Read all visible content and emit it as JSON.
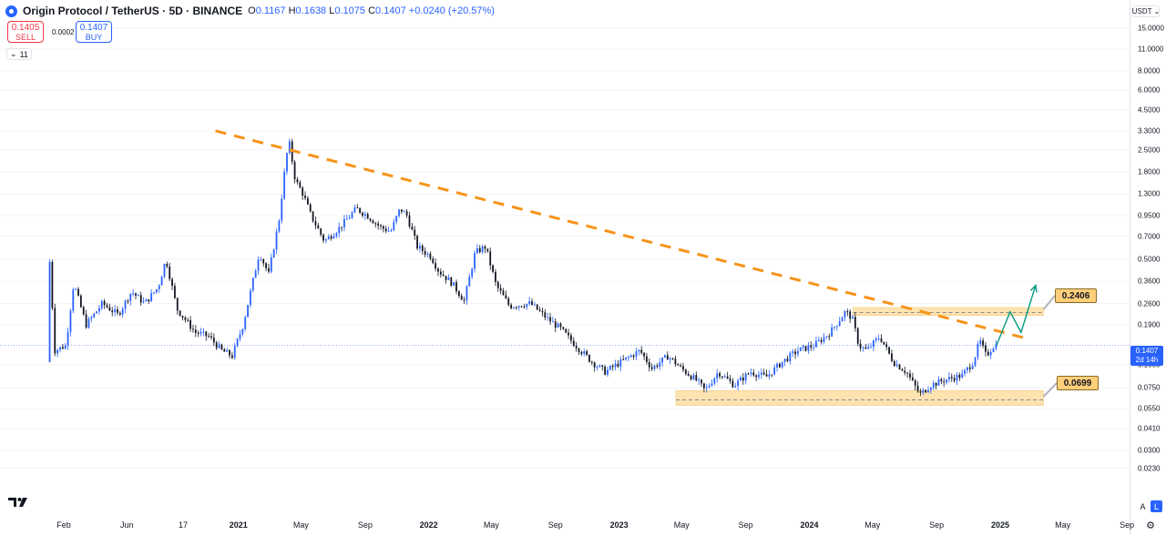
{
  "header": {
    "title": "Origin Protocol / TetherUS · 5D · BINANCE",
    "open_label": "O",
    "open": "0.1167",
    "high_label": "H",
    "high": "0.1638",
    "low_label": "L",
    "low": "0.1075",
    "close_label": "C",
    "close": "0.1407",
    "change": "+0.0240 (+20.57%)"
  },
  "trade": {
    "sell_price": "0.1405",
    "sell_label": "SELL",
    "spread": "0.0002",
    "buy_price": "0.1407",
    "buy_label": "BUY"
  },
  "indicators_count": "11",
  "currency": "USDT",
  "last_price": {
    "value": "0.1407",
    "countdown": "2d 14h"
  },
  "levels": [
    {
      "value": 0.2406,
      "label": "0.2406"
    },
    {
      "value": 0.0699,
      "label": "0.0699"
    }
  ],
  "scale_buttons": {
    "auto": "A",
    "log": "L"
  },
  "colors": {
    "up": "#2962ff",
    "down": "#131722",
    "trendline": "#f7931a",
    "zone": "#fde3b0",
    "projection": "#089981"
  },
  "icons": {
    "logo": "tradingview-logo-icon",
    "settings": "gear-icon",
    "dropdown": "chevron-down-icon"
  },
  "chart_data": {
    "type": "candlestick",
    "scale": "log",
    "ylim": [
      0.0147,
      16.0
    ],
    "y_ticks": [
      "15.0000",
      "11.0000",
      "8.0000",
      "6.0000",
      "4.5000",
      "3.3000",
      "2.5000",
      "1.8000",
      "1.3000",
      "0.9500",
      "0.7000",
      "0.5000",
      "0.3600",
      "0.2600",
      "0.1900",
      "0.1050",
      "0.0750",
      "0.0550",
      "0.0410",
      "0.0300",
      "0.0230"
    ],
    "x_ticks": [
      "Feb",
      "Jun",
      "17",
      "2021",
      "May",
      "Sep",
      "2022",
      "May",
      "Sep",
      "2023",
      "May",
      "Sep",
      "2024",
      "May",
      "Sep",
      "2025",
      "May",
      "Sep"
    ],
    "x_tick_dates": [
      "2020-02-01",
      "2020-06-01",
      "2020-09-17",
      "2021-01-01",
      "2021-05-01",
      "2021-09-01",
      "2022-01-01",
      "2022-05-01",
      "2022-09-01",
      "2023-01-01",
      "2023-05-01",
      "2023-09-01",
      "2024-01-01",
      "2024-05-01",
      "2024-09-01",
      "2025-01-01",
      "2025-05-01",
      "2025-09-01"
    ],
    "price_path": [
      [
        "2020-01-05",
        0.11
      ],
      [
        "2020-01-10",
        0.48
      ],
      [
        "2020-01-20",
        0.13
      ],
      [
        "2020-02-10",
        0.14
      ],
      [
        "2020-02-25",
        0.35
      ],
      [
        "2020-03-20",
        0.19
      ],
      [
        "2020-04-20",
        0.26
      ],
      [
        "2020-05-20",
        0.22
      ],
      [
        "2020-06-15",
        0.31
      ],
      [
        "2020-07-10",
        0.26
      ],
      [
        "2020-08-05",
        0.33
      ],
      [
        "2020-08-20",
        0.5
      ],
      [
        "2020-09-10",
        0.24
      ],
      [
        "2020-10-15",
        0.17
      ],
      [
        "2020-11-10",
        0.16
      ],
      [
        "2020-12-05",
        0.13
      ],
      [
        "2020-12-25",
        0.12
      ],
      [
        "2021-01-15",
        0.19
      ],
      [
        "2021-02-15",
        0.55
      ],
      [
        "2021-03-05",
        0.4
      ],
      [
        "2021-03-25",
        0.9
      ],
      [
        "2021-04-08",
        2.3
      ],
      [
        "2021-04-14",
        2.7
      ],
      [
        "2021-04-25",
        1.6
      ],
      [
        "2021-05-10",
        1.3
      ],
      [
        "2021-05-25",
        0.95
      ],
      [
        "2021-06-20",
        0.65
      ],
      [
        "2021-07-20",
        0.8
      ],
      [
        "2021-08-20",
        1.05
      ],
      [
        "2021-09-10",
        0.95
      ],
      [
        "2021-10-05",
        0.8
      ],
      [
        "2021-10-25",
        0.75
      ],
      [
        "2021-11-12",
        1.05
      ],
      [
        "2021-11-25",
        0.95
      ],
      [
        "2021-12-15",
        0.6
      ],
      [
        "2022-01-10",
        0.52
      ],
      [
        "2022-01-25",
        0.42
      ],
      [
        "2022-02-20",
        0.35
      ],
      [
        "2022-03-15",
        0.27
      ],
      [
        "2022-04-05",
        0.55
      ],
      [
        "2022-04-25",
        0.6
      ],
      [
        "2022-05-15",
        0.34
      ],
      [
        "2022-06-10",
        0.25
      ],
      [
        "2022-07-20",
        0.26
      ],
      [
        "2022-08-20",
        0.21
      ],
      [
        "2022-09-15",
        0.18
      ],
      [
        "2022-10-15",
        0.14
      ],
      [
        "2022-11-15",
        0.11
      ],
      [
        "2022-12-10",
        0.095
      ],
      [
        "2023-01-10",
        0.11
      ],
      [
        "2023-02-15",
        0.13
      ],
      [
        "2023-03-10",
        0.1
      ],
      [
        "2023-04-10",
        0.12
      ],
      [
        "2023-05-05",
        0.1
      ],
      [
        "2023-06-05",
        0.083
      ],
      [
        "2023-06-20",
        0.072
      ],
      [
        "2023-07-15",
        0.095
      ],
      [
        "2023-08-15",
        0.078
      ],
      [
        "2023-09-15",
        0.095
      ],
      [
        "2023-10-15",
        0.088
      ],
      [
        "2023-11-15",
        0.11
      ],
      [
        "2023-12-15",
        0.13
      ],
      [
        "2024-01-15",
        0.14
      ],
      [
        "2024-02-15",
        0.17
      ],
      [
        "2024-03-15",
        0.23
      ],
      [
        "2024-03-28",
        0.21
      ],
      [
        "2024-04-10",
        0.14
      ],
      [
        "2024-04-25",
        0.13
      ],
      [
        "2024-05-20",
        0.16
      ],
      [
        "2024-06-15",
        0.11
      ],
      [
        "2024-07-10",
        0.095
      ],
      [
        "2024-08-05",
        0.068
      ],
      [
        "2024-08-25",
        0.078
      ],
      [
        "2024-09-25",
        0.085
      ],
      [
        "2024-10-25",
        0.09
      ],
      [
        "2024-11-15",
        0.11
      ],
      [
        "2024-11-28",
        0.15
      ],
      [
        "2024-12-10",
        0.12
      ],
      [
        "2024-12-25",
        0.1407
      ]
    ],
    "trendline": [
      [
        "2020-11-18",
        3.3
      ],
      [
        "2025-02-22",
        0.155
      ]
    ],
    "resistance_zone": [
      0.218,
      0.245
    ],
    "support_zone": [
      0.058,
      0.072
    ],
    "projection": [
      [
        "2024-12-25",
        0.1407
      ],
      [
        "2025-01-20",
        0.23
      ],
      [
        "2025-02-10",
        0.17
      ],
      [
        "2025-03-10",
        0.34
      ]
    ]
  }
}
